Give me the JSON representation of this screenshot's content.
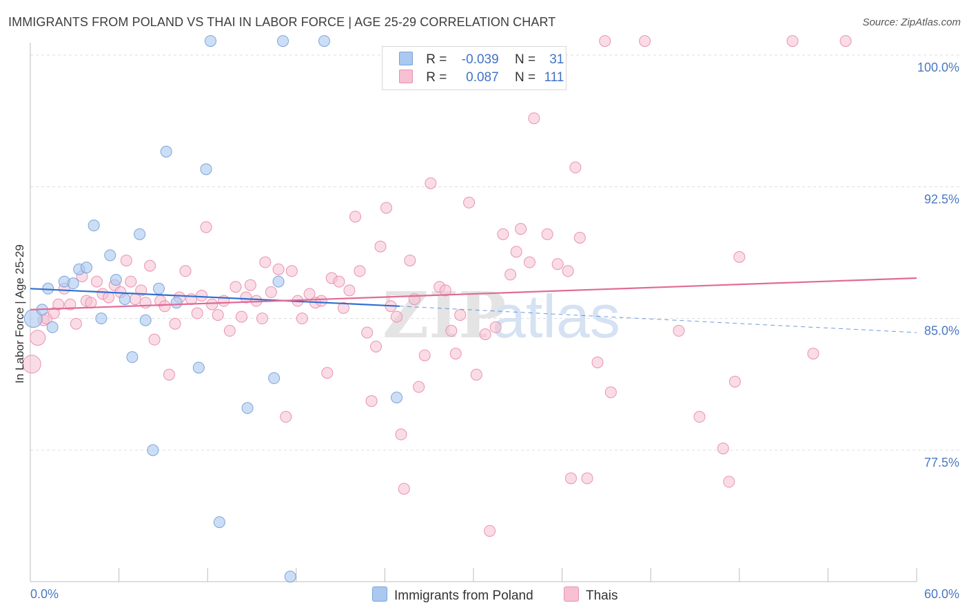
{
  "title": "IMMIGRANTS FROM POLAND VS THAI IN LABOR FORCE | AGE 25-29 CORRELATION CHART",
  "source": "Source: ZipAtlas.com",
  "watermark": {
    "zip": "ZIP",
    "atlas": "atlas"
  },
  "colors": {
    "blue_fill": "#aac8f0",
    "blue_stroke": "#7aa4d8",
    "blue_line": "#2f6fd0",
    "pink_fill": "#f6c0d2",
    "pink_stroke": "#e892b0",
    "pink_line": "#e06a96",
    "axis_text": "#4a78c2",
    "grid": "#dcdcdc"
  },
  "legend": [
    {
      "r_label": "R =",
      "r_value": "-0.039",
      "n_label": "N =",
      "n_value": "31"
    },
    {
      "r_label": "R =",
      "r_value": "0.087",
      "n_label": "N =",
      "n_value": "111"
    }
  ],
  "chart_data": {
    "type": "scatter",
    "title": "IMMIGRANTS FROM POLAND VS THAI IN LABOR FORCE | AGE 25-29 CORRELATION CHART",
    "xlabel": "",
    "ylabel": "In Labor Force | Age 25-29",
    "xlim": [
      0,
      60
    ],
    "ylim": [
      70,
      101.5
    ],
    "x_tick_labels": [
      "0.0%",
      "60.0%"
    ],
    "y_ticks": [
      77.5,
      85.0,
      92.5,
      100.0
    ],
    "y_tick_labels": [
      "77.5%",
      "85.0%",
      "92.5%",
      "100.0%"
    ],
    "grid": true,
    "legend_position": "top-center",
    "series": [
      {
        "name": "Immigrants from Poland",
        "R": -0.039,
        "N": 31,
        "trend": {
          "x": [
            0,
            25
          ],
          "y": [
            86.7,
            85.7
          ],
          "dashed_to_x": 60,
          "dashed_y_end": 84.2
        },
        "points": [
          [
            0.2,
            85.0
          ],
          [
            0.8,
            85.5
          ],
          [
            1.2,
            86.7
          ],
          [
            1.5,
            84.5
          ],
          [
            2.3,
            87.1
          ],
          [
            2.9,
            87.0
          ],
          [
            3.3,
            87.8
          ],
          [
            3.8,
            87.9
          ],
          [
            4.3,
            90.3
          ],
          [
            4.8,
            85.0
          ],
          [
            5.4,
            88.6
          ],
          [
            5.8,
            87.2
          ],
          [
            6.4,
            86.1
          ],
          [
            6.9,
            82.8
          ],
          [
            7.4,
            89.8
          ],
          [
            7.8,
            84.9
          ],
          [
            8.3,
            77.5
          ],
          [
            8.7,
            86.7
          ],
          [
            9.2,
            94.5
          ],
          [
            9.9,
            85.9
          ],
          [
            11.4,
            82.2
          ],
          [
            11.9,
            93.5
          ],
          [
            12.2,
            100.8
          ],
          [
            12.8,
            73.4
          ],
          [
            14.7,
            79.9
          ],
          [
            16.5,
            81.6
          ],
          [
            16.8,
            87.1
          ],
          [
            17.1,
            100.8
          ],
          [
            17.6,
            70.3
          ],
          [
            19.9,
            100.8
          ],
          [
            24.8,
            80.5
          ]
        ]
      },
      {
        "name": "Thais",
        "R": 0.087,
        "N": 111,
        "trend": {
          "x": [
            0,
            60
          ],
          "y": [
            85.5,
            87.3
          ]
        },
        "points": [
          [
            0.1,
            82.4
          ],
          [
            0.5,
            83.9
          ],
          [
            0.9,
            84.9
          ],
          [
            1.1,
            85.0
          ],
          [
            1.6,
            85.3
          ],
          [
            1.9,
            85.8
          ],
          [
            2.3,
            86.7
          ],
          [
            2.7,
            85.8
          ],
          [
            3.1,
            84.7
          ],
          [
            3.5,
            87.4
          ],
          [
            3.8,
            86.0
          ],
          [
            4.1,
            85.9
          ],
          [
            4.5,
            87.1
          ],
          [
            4.9,
            86.4
          ],
          [
            5.3,
            86.2
          ],
          [
            5.7,
            86.9
          ],
          [
            6.1,
            86.5
          ],
          [
            6.5,
            88.3
          ],
          [
            6.8,
            87.1
          ],
          [
            7.1,
            86.1
          ],
          [
            7.5,
            86.6
          ],
          [
            7.8,
            85.9
          ],
          [
            8.1,
            88.0
          ],
          [
            8.4,
            83.8
          ],
          [
            8.8,
            86.0
          ],
          [
            9.1,
            85.7
          ],
          [
            9.4,
            81.8
          ],
          [
            9.8,
            84.7
          ],
          [
            10.1,
            86.2
          ],
          [
            10.5,
            87.7
          ],
          [
            10.9,
            86.1
          ],
          [
            11.3,
            85.3
          ],
          [
            11.6,
            86.3
          ],
          [
            11.9,
            90.2
          ],
          [
            12.3,
            85.8
          ],
          [
            12.7,
            85.2
          ],
          [
            13.1,
            86.0
          ],
          [
            13.5,
            84.3
          ],
          [
            13.9,
            86.8
          ],
          [
            14.3,
            85.1
          ],
          [
            14.6,
            86.2
          ],
          [
            14.9,
            86.9
          ],
          [
            15.3,
            86.0
          ],
          [
            15.7,
            85.0
          ],
          [
            15.9,
            88.2
          ],
          [
            16.3,
            86.5
          ],
          [
            16.8,
            87.8
          ],
          [
            17.3,
            79.4
          ],
          [
            17.7,
            87.7
          ],
          [
            18.1,
            86.0
          ],
          [
            18.4,
            85.0
          ],
          [
            18.9,
            86.4
          ],
          [
            19.3,
            85.9
          ],
          [
            19.7,
            86.0
          ],
          [
            20.1,
            81.9
          ],
          [
            20.4,
            87.3
          ],
          [
            20.9,
            87.1
          ],
          [
            21.2,
            85.6
          ],
          [
            21.6,
            86.6
          ],
          [
            22.0,
            90.8
          ],
          [
            22.3,
            87.7
          ],
          [
            22.8,
            84.2
          ],
          [
            23.1,
            80.3
          ],
          [
            23.4,
            83.4
          ],
          [
            23.7,
            89.1
          ],
          [
            24.1,
            91.3
          ],
          [
            24.4,
            85.7
          ],
          [
            24.8,
            85.1
          ],
          [
            25.1,
            78.4
          ],
          [
            25.3,
            75.3
          ],
          [
            25.7,
            88.3
          ],
          [
            26.0,
            86.1
          ],
          [
            26.3,
            81.1
          ],
          [
            26.7,
            82.9
          ],
          [
            27.1,
            92.7
          ],
          [
            27.7,
            86.8
          ],
          [
            28.1,
            86.6
          ],
          [
            28.5,
            84.3
          ],
          [
            28.8,
            83.0
          ],
          [
            29.1,
            85.2
          ],
          [
            29.7,
            91.6
          ],
          [
            30.2,
            81.8
          ],
          [
            30.8,
            84.1
          ],
          [
            31.1,
            72.9
          ],
          [
            31.5,
            84.5
          ],
          [
            32.0,
            89.8
          ],
          [
            32.5,
            87.5
          ],
          [
            32.9,
            88.8
          ],
          [
            33.2,
            90.1
          ],
          [
            33.8,
            88.2
          ],
          [
            34.1,
            96.4
          ],
          [
            35.0,
            89.8
          ],
          [
            35.7,
            88.1
          ],
          [
            36.4,
            87.7
          ],
          [
            36.6,
            75.9
          ],
          [
            36.9,
            93.6
          ],
          [
            37.2,
            89.6
          ],
          [
            37.7,
            75.9
          ],
          [
            38.4,
            82.5
          ],
          [
            38.9,
            100.8
          ],
          [
            39.3,
            80.8
          ],
          [
            41.6,
            100.8
          ],
          [
            43.9,
            84.3
          ],
          [
            45.3,
            79.4
          ],
          [
            46.9,
            77.6
          ],
          [
            47.3,
            75.7
          ],
          [
            47.7,
            81.4
          ],
          [
            48.0,
            88.5
          ],
          [
            51.6,
            100.8
          ],
          [
            53.0,
            83.0
          ],
          [
            55.2,
            100.8
          ]
        ]
      }
    ]
  },
  "bottom_legend": [
    "Immigrants from Poland",
    "Thais"
  ]
}
